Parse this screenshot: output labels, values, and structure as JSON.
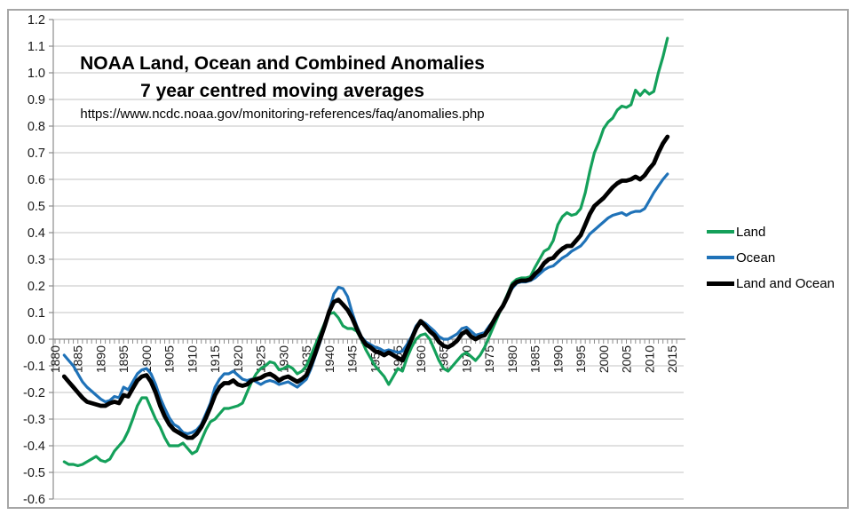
{
  "chart_data": {
    "type": "line",
    "title": "NOAA Land, Ocean and Combined Anomalies",
    "subtitle": "7 year centred moving averages",
    "source_url": "https://www.ncdc.noaa.gov/monitoring-references/faq/anomalies.php",
    "xlabel": "",
    "ylabel": "",
    "ylim": [
      -0.6,
      1.2
    ],
    "y_ticks": [
      1.2,
      1.1,
      1.0,
      0.9,
      0.8,
      0.7,
      0.6,
      0.5,
      0.4,
      0.3,
      0.2,
      0.1,
      0.0,
      -0.1,
      -0.2,
      -0.3,
      -0.4,
      -0.5,
      -0.6
    ],
    "x_range": [
      1880,
      2016
    ],
    "x_ticks": [
      1880,
      1885,
      1890,
      1895,
      1900,
      1905,
      1910,
      1915,
      1920,
      1925,
      1930,
      1935,
      1940,
      1945,
      1950,
      1955,
      1960,
      1965,
      1970,
      1975,
      1980,
      1985,
      1990,
      1995,
      2000,
      2005,
      2010,
      2015
    ],
    "grid": true,
    "legend_position": "right",
    "start_year": 1882,
    "series": [
      {
        "name": "Land",
        "color": "#14a05a",
        "width": 3.2,
        "values": [
          -0.46,
          -0.47,
          -0.47,
          -0.475,
          -0.47,
          -0.46,
          -0.45,
          -0.44,
          -0.455,
          -0.46,
          -0.45,
          -0.42,
          -0.4,
          -0.38,
          -0.345,
          -0.3,
          -0.25,
          -0.22,
          -0.22,
          -0.26,
          -0.3,
          -0.33,
          -0.37,
          -0.4,
          -0.4,
          -0.4,
          -0.39,
          -0.41,
          -0.43,
          -0.42,
          -0.38,
          -0.34,
          -0.31,
          -0.3,
          -0.28,
          -0.26,
          -0.26,
          -0.255,
          -0.25,
          -0.24,
          -0.2,
          -0.16,
          -0.13,
          -0.11,
          -0.1,
          -0.085,
          -0.09,
          -0.115,
          -0.11,
          -0.1,
          -0.11,
          -0.13,
          -0.12,
          -0.1,
          -0.06,
          -0.02,
          0.02,
          0.06,
          0.095,
          0.1,
          0.08,
          0.05,
          0.04,
          0.04,
          0.03,
          0.0,
          -0.04,
          -0.07,
          -0.1,
          -0.12,
          -0.14,
          -0.17,
          -0.14,
          -0.11,
          -0.12,
          -0.07,
          -0.03,
          0.0,
          0.015,
          0.02,
          0.0,
          -0.04,
          -0.08,
          -0.11,
          -0.12,
          -0.1,
          -0.08,
          -0.06,
          -0.05,
          -0.065,
          -0.08,
          -0.06,
          -0.03,
          0.01,
          0.05,
          0.09,
          0.13,
          0.17,
          0.21,
          0.225,
          0.23,
          0.23,
          0.235,
          0.27,
          0.3,
          0.33,
          0.34,
          0.37,
          0.43,
          0.46,
          0.475,
          0.465,
          0.47,
          0.49,
          0.55,
          0.63,
          0.7,
          0.74,
          0.79,
          0.815,
          0.83,
          0.86,
          0.875,
          0.87,
          0.88,
          0.935,
          0.915,
          0.935,
          0.92,
          0.93,
          1.0,
          1.06,
          1.13
        ]
      },
      {
        "name": "Ocean",
        "color": "#1f72b8",
        "width": 3.2,
        "values": [
          -0.06,
          -0.08,
          -0.1,
          -0.13,
          -0.16,
          -0.18,
          -0.195,
          -0.21,
          -0.225,
          -0.235,
          -0.23,
          -0.215,
          -0.22,
          -0.18,
          -0.19,
          -0.16,
          -0.13,
          -0.115,
          -0.11,
          -0.13,
          -0.17,
          -0.22,
          -0.26,
          -0.295,
          -0.32,
          -0.33,
          -0.35,
          -0.355,
          -0.35,
          -0.34,
          -0.32,
          -0.28,
          -0.24,
          -0.18,
          -0.15,
          -0.13,
          -0.13,
          -0.12,
          -0.135,
          -0.15,
          -0.155,
          -0.15,
          -0.16,
          -0.17,
          -0.16,
          -0.155,
          -0.16,
          -0.17,
          -0.165,
          -0.16,
          -0.17,
          -0.18,
          -0.165,
          -0.15,
          -0.11,
          -0.06,
          -0.01,
          0.05,
          0.11,
          0.17,
          0.195,
          0.19,
          0.16,
          0.1,
          0.05,
          0.01,
          -0.01,
          -0.02,
          -0.03,
          -0.035,
          -0.045,
          -0.04,
          -0.045,
          -0.05,
          -0.045,
          -0.02,
          0.01,
          0.05,
          0.07,
          0.06,
          0.045,
          0.03,
          0.01,
          0.0,
          0.0,
          0.01,
          0.02,
          0.04,
          0.045,
          0.03,
          0.015,
          0.02,
          0.025,
          0.05,
          0.07,
          0.1,
          0.12,
          0.16,
          0.19,
          0.21,
          0.215,
          0.215,
          0.22,
          0.23,
          0.245,
          0.26,
          0.27,
          0.275,
          0.29,
          0.305,
          0.315,
          0.33,
          0.34,
          0.35,
          0.37,
          0.395,
          0.41,
          0.425,
          0.44,
          0.455,
          0.465,
          0.47,
          0.475,
          0.465,
          0.475,
          0.48,
          0.48,
          0.49,
          0.52,
          0.55,
          0.575,
          0.6,
          0.62
        ]
      },
      {
        "name": "Land and Ocean",
        "color": "#000000",
        "width": 4.8,
        "values": [
          -0.14,
          -0.16,
          -0.18,
          -0.2,
          -0.22,
          -0.235,
          -0.24,
          -0.245,
          -0.25,
          -0.25,
          -0.24,
          -0.235,
          -0.24,
          -0.21,
          -0.215,
          -0.185,
          -0.155,
          -0.14,
          -0.135,
          -0.16,
          -0.2,
          -0.25,
          -0.29,
          -0.32,
          -0.34,
          -0.35,
          -0.36,
          -0.37,
          -0.37,
          -0.355,
          -0.33,
          -0.295,
          -0.255,
          -0.21,
          -0.18,
          -0.165,
          -0.165,
          -0.155,
          -0.17,
          -0.175,
          -0.17,
          -0.155,
          -0.15,
          -0.145,
          -0.135,
          -0.13,
          -0.14,
          -0.155,
          -0.145,
          -0.14,
          -0.15,
          -0.16,
          -0.15,
          -0.135,
          -0.095,
          -0.05,
          0.0,
          0.05,
          0.105,
          0.14,
          0.148,
          0.13,
          0.11,
          0.08,
          0.04,
          0.005,
          -0.02,
          -0.03,
          -0.045,
          -0.05,
          -0.06,
          -0.05,
          -0.06,
          -0.07,
          -0.08,
          -0.04,
          0.0,
          0.04,
          0.068,
          0.05,
          0.03,
          0.015,
          -0.01,
          -0.025,
          -0.03,
          -0.02,
          -0.005,
          0.02,
          0.03,
          0.01,
          0.0,
          0.01,
          0.015,
          0.04,
          0.07,
          0.1,
          0.125,
          0.16,
          0.2,
          0.215,
          0.22,
          0.22,
          0.225,
          0.245,
          0.26,
          0.285,
          0.3,
          0.305,
          0.325,
          0.34,
          0.35,
          0.35,
          0.37,
          0.39,
          0.43,
          0.47,
          0.5,
          0.515,
          0.53,
          0.55,
          0.57,
          0.585,
          0.595,
          0.595,
          0.6,
          0.61,
          0.6,
          0.615,
          0.64,
          0.66,
          0.7,
          0.735,
          0.76
        ]
      }
    ]
  }
}
